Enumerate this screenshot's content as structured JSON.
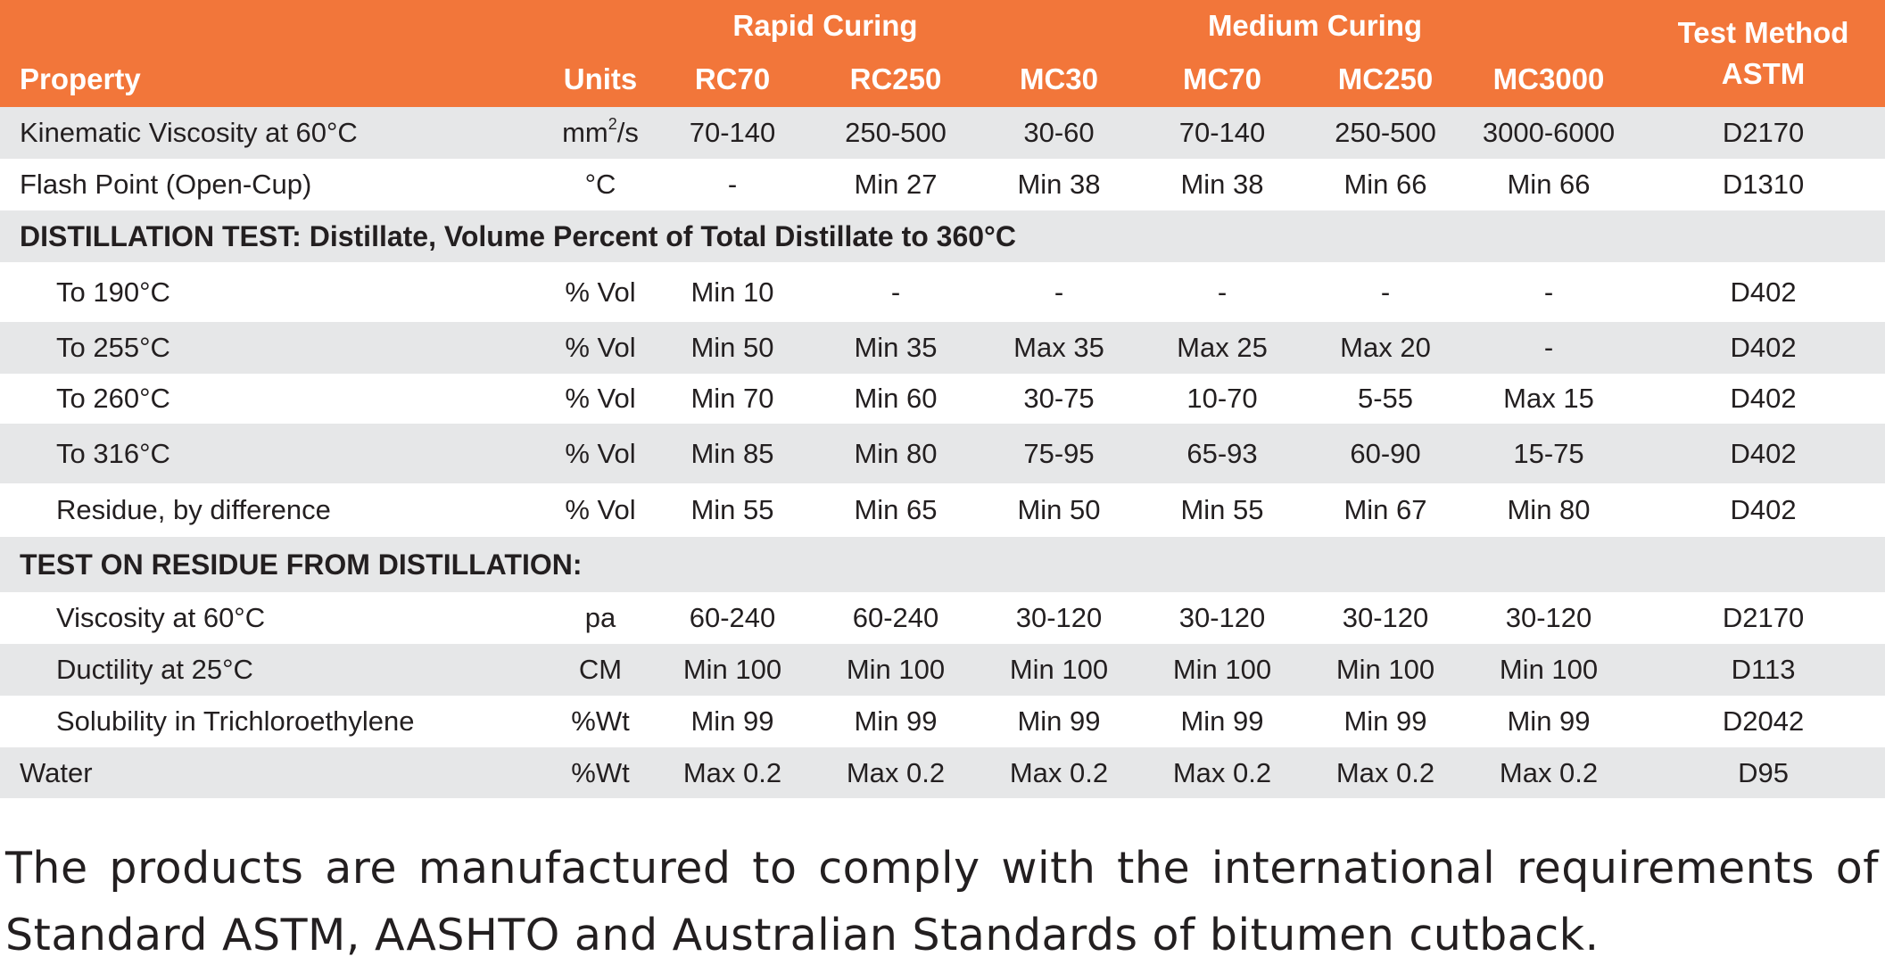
{
  "header": {
    "group_rapid": "Rapid Curing",
    "group_medium": "Medium Curing",
    "property": "Property",
    "units": "Units",
    "grades": [
      "RC70",
      "RC250",
      "MC30",
      "MC70",
      "MC250",
      "MC3000"
    ],
    "test_method_line1": "Test Method",
    "test_method_line2": "ASTM"
  },
  "rows": [
    {
      "name": "Kinematic Viscosity at 60°C",
      "unit_base": "mm",
      "unit_sup": "2",
      "unit_tail": "/s",
      "values": [
        "70-140",
        "250-500",
        "30-60",
        "70-140",
        "250-500",
        "3000-6000"
      ],
      "method": "D2170"
    },
    {
      "name": "Flash Point (Open-Cup)",
      "unit": "°C",
      "values": [
        "-",
        "Min 27",
        "Min 38",
        "Min 38",
        "Min 66",
        "Min 66"
      ],
      "method": "D1310"
    },
    {
      "section": "DISTILLATION TEST: Distillate, Volume Percent of Total Distillate to 360°C"
    },
    {
      "name": "To 190°C",
      "unit": "% Vol",
      "values": [
        "Min 10",
        "-",
        "-",
        "-",
        "-",
        "-"
      ],
      "method": "D402"
    },
    {
      "name": "To 255°C",
      "unit": "% Vol",
      "values": [
        "Min 50",
        "Min 35",
        "Max 35",
        "Max 25",
        "Max 20",
        "-"
      ],
      "method": "D402"
    },
    {
      "name": "To 260°C",
      "unit": "% Vol",
      "values": [
        "Min 70",
        "Min 60",
        "30-75",
        "10-70",
        "5-55",
        "Max 15"
      ],
      "method": "D402"
    },
    {
      "name": "To 316°C",
      "unit": "% Vol",
      "values": [
        "Min 85",
        "Min 80",
        "75-95",
        "65-93",
        "60-90",
        "15-75"
      ],
      "method": "D402"
    },
    {
      "name": "Residue, by difference",
      "unit": "% Vol",
      "values": [
        "Min 55",
        "Min 65",
        "Min 50",
        "Min 55",
        "Min 67",
        "Min 80"
      ],
      "method": "D402"
    },
    {
      "section": "TEST ON RESIDUE FROM DISTILLATION:"
    },
    {
      "name": "Viscosity at 60°C",
      "unit": "pa",
      "values": [
        "60-240",
        "60-240",
        "30-120",
        "30-120",
        "30-120",
        "30-120"
      ],
      "method": "D2170"
    },
    {
      "name": "Ductility at 25°C",
      "unit": "CM",
      "values": [
        "Min 100",
        "Min 100",
        "Min 100",
        "Min 100",
        "Min 100",
        "Min 100"
      ],
      "method": "D113"
    },
    {
      "name": "Solubility in Trichloroethylene",
      "unit": "%Wt",
      "values": [
        "Min 99",
        "Min 99",
        "Min 99",
        "Min 99",
        "Min 99",
        "Min 99"
      ],
      "method": "D2042"
    },
    {
      "name": "Water",
      "unit": "%Wt",
      "values": [
        "Max 0.2",
        "Max 0.2",
        "Max 0.2",
        "Max 0.2",
        "Max 0.2",
        "Max 0.2"
      ],
      "method": "D95"
    }
  ],
  "footer": "The products are manufactured to comply with the international requirements of Standard ASTM, AASHTO and Australian Standards of bitumen cutback.",
  "colors": {
    "header_bg": "#f2763a",
    "row_shade": "#e6e7e8",
    "text": "#231f20"
  },
  "watermark_icon": "company-logo-watermark"
}
